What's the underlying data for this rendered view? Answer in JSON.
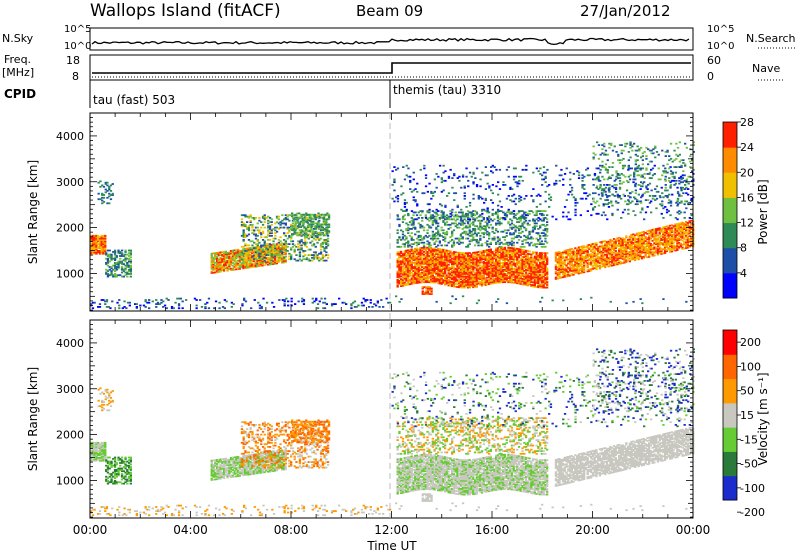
{
  "header": {
    "station": "Wallops Island (fitACF)",
    "beam": "Beam 09",
    "date": "27/Jan/2012"
  },
  "status_panels": {
    "nsky_label": "N.Sky",
    "nsky_ticks": [
      "10^5",
      "10^0"
    ],
    "nsearch_label": "N.Search",
    "nsearch_ticks": [
      "10^5",
      "10^0"
    ],
    "freq_label_line1": "Freq.",
    "freq_label_line2": "[MHz]",
    "freq_ticks": [
      "18",
      "8"
    ],
    "nave_label": "Nave",
    "nave_ticks": [
      "60",
      "0"
    ],
    "cpid_label": "CPID",
    "programs": [
      {
        "name": "tau (fast) 503",
        "start_hour": 0
      },
      {
        "name": "themis (tau) 3310",
        "start_hour": 12
      }
    ]
  },
  "chart_data": [
    {
      "type": "heatmap",
      "title": "",
      "ylabel": "Slant Range [km]",
      "xlabel": "Time UT",
      "x_range_hours": [
        0,
        24
      ],
      "ylim": [
        180,
        4500
      ],
      "yticks": [
        "1000",
        "2000",
        "3000",
        "4000"
      ],
      "colorbar": {
        "label": "Power [dB]",
        "ticks": [
          "4",
          "8",
          "12",
          "16",
          "20",
          "24",
          "28"
        ],
        "colors": [
          "#0000ff",
          "#1e4fa8",
          "#2e8b57",
          "#6fbf40",
          "#f0c000",
          "#ff8c00",
          "#ff2000"
        ]
      }
    },
    {
      "type": "heatmap",
      "title": "",
      "ylabel": "Slant Range [km]",
      "xlabel": "Time UT",
      "x_range_hours": [
        0,
        24
      ],
      "ylim": [
        180,
        4500
      ],
      "yticks": [
        "1000",
        "2000",
        "3000",
        "4000"
      ],
      "colorbar": {
        "label": "Velocity [m s⁻¹]",
        "ticks": [
          "200",
          "100",
          "50",
          "15",
          "-15",
          "-50",
          "-100",
          "-200"
        ],
        "colors": [
          "#1a2ccc",
          "#2a7a3a",
          "#66cc33",
          "#c8c8c0",
          "#ff9900",
          "#ff6600",
          "#ff0000"
        ]
      }
    }
  ],
  "x_axis": {
    "title": "Time UT",
    "ticks": [
      "00:00",
      "04:00",
      "08:00",
      "12:00",
      "16:00",
      "20:00",
      "00:00"
    ]
  }
}
